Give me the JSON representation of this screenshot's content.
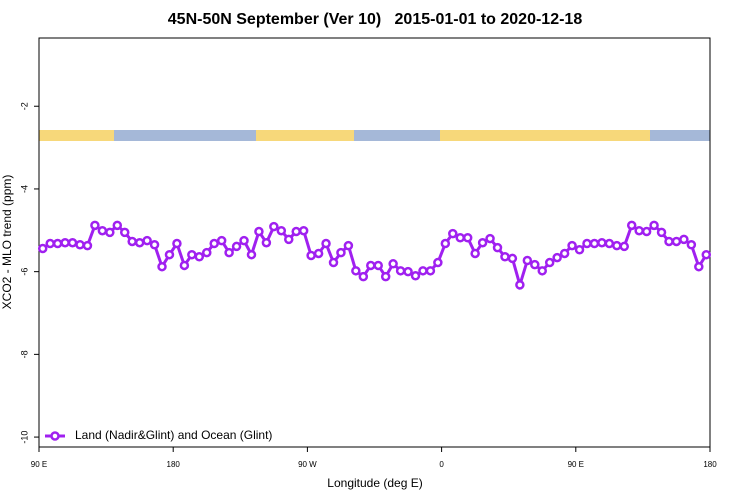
{
  "chart_data": {
    "type": "line",
    "title": "45N-50N September (Ver 10)   2015-01-01 to 2020-12-18",
    "x_label": "Longitude (deg E)",
    "y_label": "XCO2 - MLO trend (ppm)",
    "xlim": [
      90,
      540
    ],
    "ylim": [
      -10.24,
      -0.35
    ],
    "xticks": [
      {
        "value": 90,
        "label": "90 E"
      },
      {
        "value": 180,
        "label": "180"
      },
      {
        "value": 270,
        "label": "90 W"
      },
      {
        "value": 360,
        "label": "0"
      },
      {
        "value": 450,
        "label": "90 E"
      },
      {
        "value": 540,
        "label": "180"
      }
    ],
    "yticks": [
      -2,
      -4,
      -6,
      -8,
      -10
    ],
    "legend": "bottom-left",
    "x": [
      92.5,
      97.5,
      102.5,
      107.5,
      112.5,
      117.5,
      122.5,
      127.5,
      132.5,
      137.5,
      142.5,
      147.5,
      152.5,
      157.5,
      162.5,
      167.5,
      172.5,
      177.5,
      182.5,
      187.5,
      192.5,
      197.5,
      202.5,
      207.5,
      212.5,
      217.5,
      222.5,
      227.5,
      232.5,
      237.5,
      242.5,
      247.5,
      252.5,
      257.5,
      262.5,
      267.5,
      272.5,
      277.5,
      282.5,
      287.5,
      292.5,
      297.5,
      302.5,
      307.5,
      312.5,
      317.5,
      322.5,
      327.5,
      332.5,
      337.5,
      342.5,
      347.5,
      352.5,
      357.5,
      362.5,
      367.5,
      372.5,
      377.5,
      382.5,
      387.5,
      392.5,
      397.5,
      402.5,
      407.5,
      412.5,
      417.5,
      422.5,
      427.5,
      432.5,
      437.5,
      442.5,
      447.5,
      452.5,
      457.5,
      462.5,
      467.5,
      472.5,
      477.5,
      482.5,
      487.5,
      492.5,
      497.5,
      502.5,
      507.5,
      512.5,
      517.5,
      522.5,
      527.5,
      532.5,
      537.5
    ],
    "series": [
      {
        "name": "Land (Nadir&Glint) and Ocean (Glint)",
        "color": "#a020f0",
        "values": [
          -5.44,
          -5.32,
          -5.32,
          -5.3,
          -5.3,
          -5.35,
          -5.37,
          -4.88,
          -5.01,
          -5.05,
          -4.88,
          -5.05,
          -5.27,
          -5.3,
          -5.25,
          -5.35,
          -5.88,
          -5.59,
          -5.32,
          -5.85,
          -5.59,
          -5.64,
          -5.54,
          -5.32,
          -5.25,
          -5.54,
          -5.39,
          -5.25,
          -5.59,
          -5.03,
          -5.3,
          -4.91,
          -5.01,
          -5.22,
          -5.03,
          -5.01,
          -5.61,
          -5.56,
          -5.32,
          -5.78,
          -5.54,
          -5.37,
          -5.98,
          -6.12,
          -5.85,
          -5.85,
          -6.12,
          -5.81,
          -5.98,
          -6.0,
          -6.1,
          -5.98,
          -5.98,
          -5.78,
          -5.32,
          -5.08,
          -5.18,
          -5.18,
          -5.56,
          -5.3,
          -5.2,
          -5.42,
          -5.64,
          -5.68,
          -6.32,
          -5.73,
          -5.83,
          -5.98,
          -5.78,
          -5.66,
          -5.56,
          -5.37,
          -5.47,
          -5.32,
          -5.32,
          -5.3,
          -5.32,
          -5.37,
          -5.39,
          -4.88,
          -5.01,
          -5.03,
          -4.88,
          -5.05,
          -5.27,
          -5.27,
          -5.22,
          -5.35,
          -5.88,
          -5.59
        ]
      }
    ]
  }
}
